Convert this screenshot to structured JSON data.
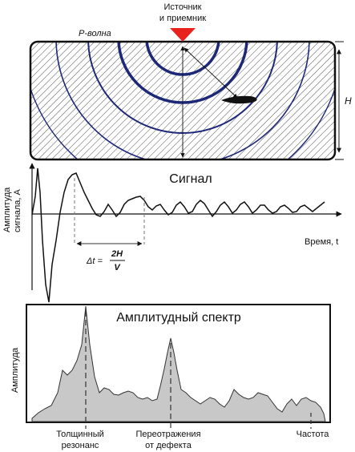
{
  "labels": {
    "source_receiver_line1": "Источник",
    "source_receiver_line2": "и приемник",
    "p_wave": "P-волна",
    "thickness": "H",
    "signal_title": "Сигнал",
    "time_axis": "Время, t",
    "signal_ylabel_line1": "Амплитуда",
    "signal_ylabel_line2": "сигнала, A",
    "delta_t_prefix": "Δt =",
    "delta_t_num": "2H",
    "delta_t_den": "V",
    "spectrum_title": "Амплитудный спектр",
    "spectrum_ylabel": "Амплитуда",
    "resonance_line1": "Толщинный",
    "resonance_line2": "резонанс",
    "defect_line1": "Переотражения",
    "defect_line2": "от дефекта",
    "frequency_axis": "Частота"
  },
  "colors": {
    "source_marker": "#e8221e",
    "wavefront": "#1e2878",
    "spectrum_fill": "#c8c8c8",
    "hatch": "#444444"
  }
}
